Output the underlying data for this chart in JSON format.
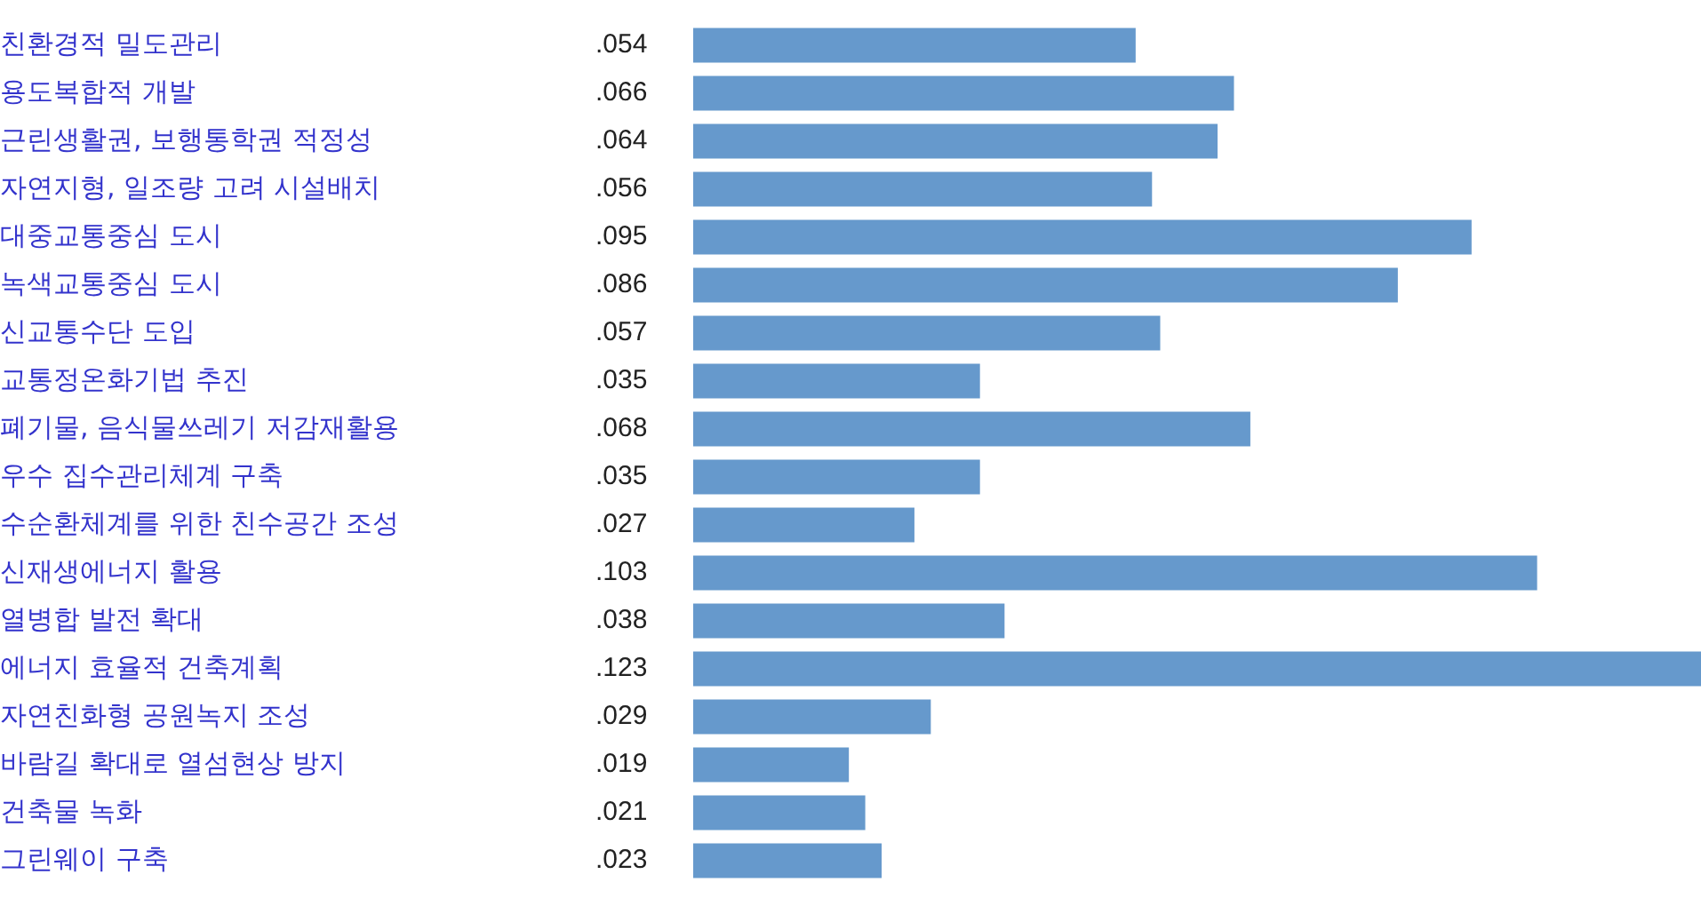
{
  "chart_data": {
    "type": "bar",
    "orientation": "horizontal",
    "categories": [
      "친환경적 밀도관리",
      "용도복합적 개발",
      "근린생활권, 보행통학권 적정성",
      "자연지형, 일조량 고려 시설배치",
      "대중교통중심 도시",
      "녹색교통중심 도시",
      "신교통수단 도입",
      "교통정온화기법 추진",
      "폐기물, 음식물쓰레기 저감재활용",
      "우수 집수관리체계 구축",
      "수순환체계를 위한 친수공간 조성",
      "신재생에너지 활용",
      "열병합 발전 확대",
      "에너지 효율적 건축계획",
      "자연친화형 공원녹지 조성",
      "바람길 확대로 열섬현상 방지",
      "건축물 녹화",
      "그린웨이 구축"
    ],
    "values": [
      0.054,
      0.066,
      0.064,
      0.056,
      0.095,
      0.086,
      0.057,
      0.035,
      0.068,
      0.035,
      0.027,
      0.103,
      0.038,
      0.123,
      0.029,
      0.019,
      0.021,
      0.023
    ],
    "value_labels": [
      ".054",
      ".066",
      ".064",
      ".056",
      ".095",
      ".086",
      ".057",
      ".035",
      ".068",
      ".035",
      ".027",
      ".103",
      ".038",
      ".123",
      ".029",
      ".019",
      ".021",
      ".023"
    ],
    "color": "#6699cc",
    "legend": false,
    "grid": false,
    "tick_labels": "y"
  }
}
